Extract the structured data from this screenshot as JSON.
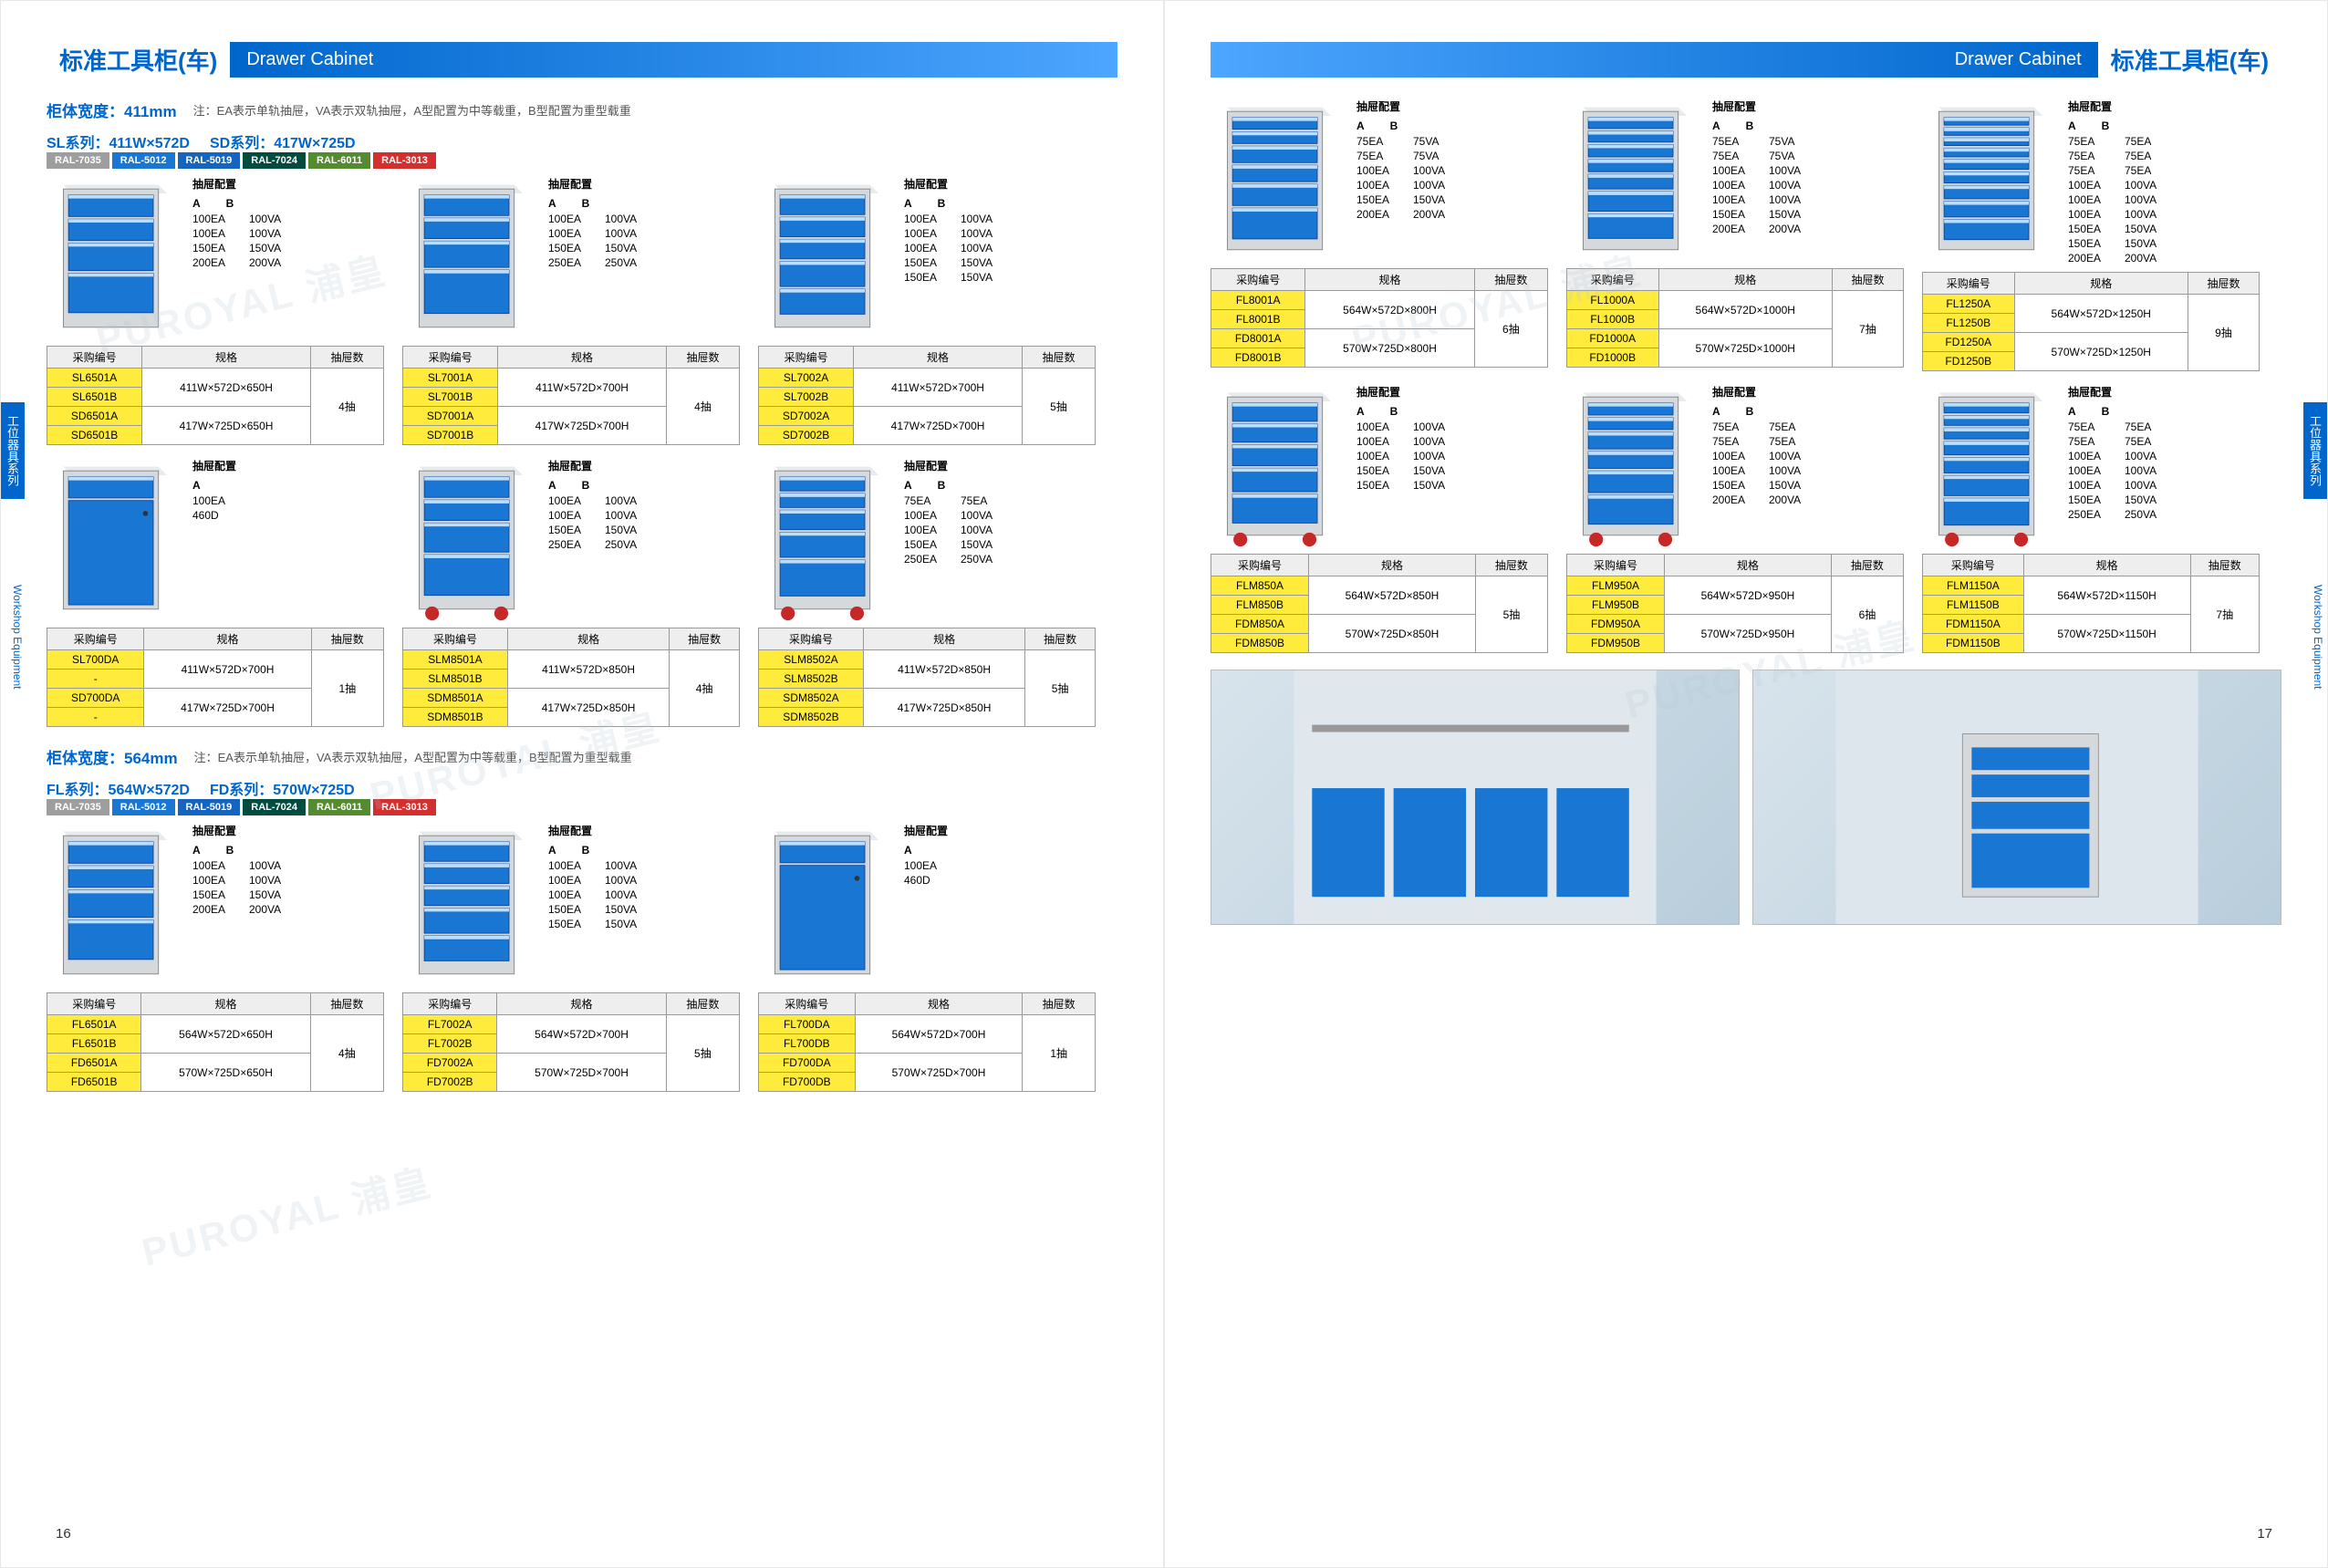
{
  "colors": {
    "brand": "#0066cc",
    "yellow": "#ffeb3b",
    "drawer": "#1976d2",
    "body": "#d5d9dc",
    "wheel": "#c62828"
  },
  "watermark": "PUROYAL 浦皇",
  "header": {
    "cn": "标准工具柜(车)",
    "en": "Drawer Cabinet"
  },
  "side_cn": "工位器具系列",
  "side_en": "Workshop Equipment",
  "page_left": "16",
  "page_right": "17",
  "note": "注：EA表示单轨抽屉，VA表示双轨抽屉，A型配置为中等载重，B型配置为重型载重",
  "sec1": {
    "width_label": "柜体宽度：",
    "width_val": "411mm",
    "series": [
      "SL系列：411W×572D",
      "SD系列：417W×725D"
    ]
  },
  "sec2": {
    "width_label": "柜体宽度：",
    "width_val": "564mm",
    "series": [
      "FL系列：564W×572D",
      "FD系列：570W×725D"
    ]
  },
  "ral": [
    {
      "c": "#9e9e9e",
      "t": "RAL-7035"
    },
    {
      "c": "#1976d2",
      "t": "RAL-5012"
    },
    {
      "c": "#1565c0",
      "t": "RAL-5019"
    },
    {
      "c": "#004d40",
      "t": "RAL-7024"
    },
    {
      "c": "#558b2f",
      "t": "RAL-6011"
    },
    {
      "c": "#d32f2f",
      "t": "RAL-3013"
    }
  ],
  "cfg_title": "抽屉配置",
  "cfg_cols": [
    "A",
    "B"
  ],
  "th": [
    "采购编号",
    "规格",
    "抽屉数"
  ],
  "left_r1": [
    {
      "d": [
        80,
        80,
        100,
        140
      ],
      "cfg": [
        [
          "100EA",
          "100VA"
        ],
        [
          "100EA",
          "100VA"
        ],
        [
          "150EA",
          "150VA"
        ],
        [
          "200EA",
          "200VA"
        ]
      ],
      "tbl": [
        [
          "SL6501A",
          "411W×572D×650H",
          "4抽"
        ],
        [
          "SL6501B",
          "",
          ""
        ],
        [
          "SD6501A",
          "417W×725D×650H",
          ""
        ],
        [
          "SD6501B",
          "",
          ""
        ]
      ]
    },
    {
      "d": [
        80,
        80,
        100,
        160
      ],
      "cfg": [
        [
          "100EA",
          "100VA"
        ],
        [
          "100EA",
          "100VA"
        ],
        [
          "150EA",
          "150VA"
        ],
        [
          "250EA",
          "250VA"
        ]
      ],
      "tbl": [
        [
          "SL7001A",
          "411W×572D×700H",
          "4抽"
        ],
        [
          "SL7001B",
          "",
          ""
        ],
        [
          "SD7001A",
          "417W×725D×700H",
          ""
        ],
        [
          "SD7001B",
          "",
          ""
        ]
      ]
    },
    {
      "d": [
        80,
        80,
        80,
        100,
        100
      ],
      "cfg": [
        [
          "100EA",
          "100VA"
        ],
        [
          "100EA",
          "100VA"
        ],
        [
          "100EA",
          "100VA"
        ],
        [
          "150EA",
          "150VA"
        ],
        [
          "150EA",
          "150VA"
        ]
      ],
      "tbl": [
        [
          "SL7002A",
          "411W×572D×700H",
          "5抽"
        ],
        [
          "SL7002B",
          "",
          ""
        ],
        [
          "SD7002A",
          "417W×725D×700H",
          ""
        ],
        [
          "SD7002B",
          "",
          ""
        ]
      ]
    }
  ],
  "left_r2": [
    {
      "d": [
        70
      ],
      "door": true,
      "cfg": [
        [
          "100EA",
          ""
        ],
        [
          "460D",
          ""
        ]
      ],
      "cfg_single": true,
      "tbl": [
        [
          "SL700DA",
          "411W×572D×700H",
          "1抽"
        ],
        [
          "-",
          "",
          ""
        ],
        [
          "SD700DA",
          "417W×725D×700H",
          ""
        ],
        [
          "-",
          "",
          ""
        ]
      ]
    },
    {
      "d": [
        80,
        80,
        110,
        150
      ],
      "wheels": true,
      "cfg": [
        [
          "100EA",
          "100VA"
        ],
        [
          "100EA",
          "100VA"
        ],
        [
          "150EA",
          "150VA"
        ],
        [
          "250EA",
          "250VA"
        ]
      ],
      "tbl": [
        [
          "SLM8501A",
          "411W×572D×850H",
          "4抽"
        ],
        [
          "SLM8501B",
          "",
          ""
        ],
        [
          "SDM8501A",
          "417W×725D×850H",
          ""
        ],
        [
          "SDM8501B",
          "",
          ""
        ]
      ]
    },
    {
      "d": [
        60,
        60,
        80,
        100,
        140
      ],
      "wheels": true,
      "cfg": [
        [
          "75EA",
          "75EA"
        ],
        [
          "100EA",
          "100VA"
        ],
        [
          "100EA",
          "100VA"
        ],
        [
          "150EA",
          "150VA"
        ],
        [
          "250EA",
          "250VA"
        ]
      ],
      "tbl": [
        [
          "SLM8502A",
          "411W×572D×850H",
          "5抽"
        ],
        [
          "SLM8502B",
          "",
          ""
        ],
        [
          "SDM8502A",
          "417W×725D×850H",
          ""
        ],
        [
          "SDM8502B",
          "",
          ""
        ]
      ]
    }
  ],
  "left_r3": [
    {
      "d": [
        80,
        80,
        100,
        140
      ],
      "cfg": [
        [
          "100EA",
          "100VA"
        ],
        [
          "100EA",
          "100VA"
        ],
        [
          "150EA",
          "150VA"
        ],
        [
          "200EA",
          "200VA"
        ]
      ],
      "tbl": [
        [
          "FL6501A",
          "564W×572D×650H",
          "4抽"
        ],
        [
          "FL6501B",
          "",
          ""
        ],
        [
          "FD6501A",
          "570W×725D×650H",
          ""
        ],
        [
          "FD6501B",
          "",
          ""
        ]
      ]
    },
    {
      "d": [
        80,
        80,
        80,
        100,
        100
      ],
      "cfg": [
        [
          "100EA",
          "100VA"
        ],
        [
          "100EA",
          "100VA"
        ],
        [
          "100EA",
          "100VA"
        ],
        [
          "150EA",
          "150VA"
        ],
        [
          "150EA",
          "150VA"
        ]
      ],
      "tbl": [
        [
          "FL7002A",
          "564W×572D×700H",
          "5抽"
        ],
        [
          "FL7002B",
          "",
          ""
        ],
        [
          "FD7002A",
          "570W×725D×700H",
          ""
        ],
        [
          "FD7002B",
          "",
          ""
        ]
      ]
    },
    {
      "d": [
        70
      ],
      "door": true,
      "cfg": [
        [
          "100EA",
          ""
        ],
        [
          "460D",
          ""
        ]
      ],
      "cfg_single": true,
      "tbl": [
        [
          "FL700DA",
          "564W×572D×700H",
          "1抽"
        ],
        [
          "FL700DB",
          "",
          ""
        ],
        [
          "FD700DA",
          "570W×725D×700H",
          ""
        ],
        [
          "FD700DB",
          "",
          ""
        ]
      ]
    }
  ],
  "right_r1": [
    {
      "d": [
        60,
        60,
        80,
        80,
        100,
        140
      ],
      "cfg": [
        [
          "75EA",
          "75VA"
        ],
        [
          "75EA",
          "75VA"
        ],
        [
          "100EA",
          "100VA"
        ],
        [
          "100EA",
          "100VA"
        ],
        [
          "150EA",
          "150VA"
        ],
        [
          "200EA",
          "200VA"
        ]
      ],
      "tbl": [
        [
          "FL8001A",
          "564W×572D×800H",
          "6抽"
        ],
        [
          "FL8001B",
          "",
          ""
        ],
        [
          "FD8001A",
          "570W×725D×800H",
          ""
        ],
        [
          "FD8001B",
          "",
          ""
        ]
      ]
    },
    {
      "d": [
        55,
        55,
        60,
        60,
        70,
        90,
        110
      ],
      "cfg": [
        [
          "75EA",
          "75VA"
        ],
        [
          "75EA",
          "75VA"
        ],
        [
          "100EA",
          "100VA"
        ],
        [
          "100EA",
          "100VA"
        ],
        [
          "100EA",
          "100VA"
        ],
        [
          "150EA",
          "150VA"
        ],
        [
          "200EA",
          "200VA"
        ]
      ],
      "tbl": [
        [
          "FL1000A",
          "564W×572D×1000H",
          "7抽"
        ],
        [
          "FL1000B",
          "",
          ""
        ],
        [
          "FD1000A",
          "570W×725D×1000H",
          ""
        ],
        [
          "FD1000B",
          "",
          ""
        ]
      ]
    },
    {
      "d": [
        45,
        45,
        45,
        50,
        55,
        60,
        70,
        80,
        100
      ],
      "cfg": [
        [
          "75EA",
          "75EA"
        ],
        [
          "75EA",
          "75EA"
        ],
        [
          "75EA",
          "75EA"
        ],
        [
          "100EA",
          "100VA"
        ],
        [
          "100EA",
          "100VA"
        ],
        [
          "100EA",
          "100VA"
        ],
        [
          "150EA",
          "150VA"
        ],
        [
          "150EA",
          "150VA"
        ],
        [
          "200EA",
          "200VA"
        ]
      ],
      "tbl": [
        [
          "FL1250A",
          "564W×572D×1250H",
          "9抽"
        ],
        [
          "FL1250B",
          "",
          ""
        ],
        [
          "FD1250A",
          "570W×725D×1250H",
          ""
        ],
        [
          "FD1250B",
          "",
          ""
        ]
      ]
    }
  ],
  "right_r2": [
    {
      "d": [
        80,
        80,
        90,
        100,
        120
      ],
      "wheels": true,
      "cfg": [
        [
          "100EA",
          "100VA"
        ],
        [
          "100EA",
          "100VA"
        ],
        [
          "100EA",
          "100VA"
        ],
        [
          "150EA",
          "150VA"
        ],
        [
          "150EA",
          "150VA"
        ]
      ],
      "tbl": [
        [
          "FLM850A",
          "564W×572D×850H",
          "5抽"
        ],
        [
          "FLM850B",
          "",
          ""
        ],
        [
          "FDM850A",
          "570W×725D×850H",
          ""
        ],
        [
          "FDM850B",
          "",
          ""
        ]
      ]
    },
    {
      "d": [
        60,
        60,
        80,
        80,
        100,
        130
      ],
      "wheels": true,
      "cfg": [
        [
          "75EA",
          "75EA"
        ],
        [
          "75EA",
          "75EA"
        ],
        [
          "100EA",
          "100VA"
        ],
        [
          "100EA",
          "100VA"
        ],
        [
          "150EA",
          "150VA"
        ],
        [
          "200EA",
          "200VA"
        ]
      ],
      "tbl": [
        [
          "FLM950A",
          "564W×572D×950H",
          "6抽"
        ],
        [
          "FLM950B",
          "",
          ""
        ],
        [
          "FDM950A",
          "570W×725D×950H",
          ""
        ],
        [
          "FDM950B",
          "",
          ""
        ]
      ]
    },
    {
      "d": [
        55,
        55,
        60,
        70,
        80,
        100,
        130
      ],
      "wheels": true,
      "cfg": [
        [
          "75EA",
          "75EA"
        ],
        [
          "75EA",
          "75EA"
        ],
        [
          "100EA",
          "100VA"
        ],
        [
          "100EA",
          "100VA"
        ],
        [
          "100EA",
          "100VA"
        ],
        [
          "150EA",
          "150VA"
        ],
        [
          "250EA",
          "250VA"
        ]
      ],
      "tbl": [
        [
          "FLM1150A",
          "564W×572D×1150H",
          "7抽"
        ],
        [
          "FLM1150B",
          "",
          ""
        ],
        [
          "FDM1150A",
          "570W×725D×1150H",
          ""
        ],
        [
          "FDM1150B",
          "",
          ""
        ]
      ]
    }
  ]
}
